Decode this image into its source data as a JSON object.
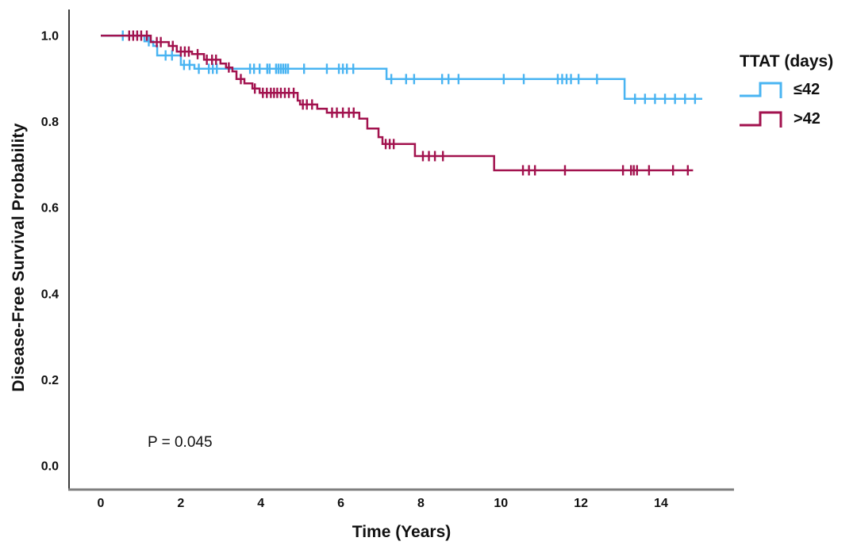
{
  "figure": {
    "background": "#ffffff",
    "text_color": "#111111",
    "x_axis_line_color": "#7f7f7f",
    "y_axis_line_color": "#3c3c3c"
  },
  "legend": {
    "title": "TTAT (days)",
    "items": [
      {
        "label": "≤42",
        "color": "#49B4F2"
      },
      {
        "label": ">42",
        "color": "#A2124E"
      }
    ]
  },
  "chart_data": {
    "type": "line",
    "subtype": "kaplan-meier-step-survival",
    "title": "",
    "xlabel": "Time (Years)",
    "ylabel": "Disease-Free Survival Probability",
    "annotation": "P = 0.045",
    "legend_title": "TTAT (days)",
    "legend_position": "right",
    "grid": false,
    "xlim": [
      -0.8,
      15.8
    ],
    "ylim": [
      0,
      1.05
    ],
    "x_ticks": [
      0,
      2,
      4,
      6,
      8,
      10,
      12,
      14
    ],
    "y_ticks": [
      0.0,
      0.2,
      0.4,
      0.6,
      0.8,
      1.0
    ],
    "y_tick_labels": [
      "0.0",
      "0.2",
      "0.4",
      "0.6",
      "0.8",
      "1.0"
    ],
    "series": [
      {
        "name": "≤42",
        "color": "#49B4F2",
        "steps": [
          [
            0,
            1.0
          ],
          [
            1.09,
            0.987
          ],
          [
            1.31,
            0.976
          ],
          [
            1.41,
            0.954
          ],
          [
            2.0,
            0.932
          ],
          [
            2.34,
            0.923
          ],
          [
            7.14,
            0.899
          ],
          [
            13.09,
            0.853
          ],
          [
            15.03,
            0.853
          ]
        ],
        "censors": [
          [
            0.55,
            1.0
          ],
          [
            1.2,
            0.987
          ],
          [
            1.62,
            0.954
          ],
          [
            1.78,
            0.954
          ],
          [
            2.08,
            0.932
          ],
          [
            2.22,
            0.932
          ],
          [
            2.45,
            0.923
          ],
          [
            2.7,
            0.923
          ],
          [
            2.8,
            0.923
          ],
          [
            2.9,
            0.923
          ],
          [
            3.73,
            0.923
          ],
          [
            3.83,
            0.923
          ],
          [
            3.97,
            0.923
          ],
          [
            4.16,
            0.923
          ],
          [
            4.22,
            0.923
          ],
          [
            4.38,
            0.923
          ],
          [
            4.44,
            0.923
          ],
          [
            4.5,
            0.923
          ],
          [
            4.56,
            0.923
          ],
          [
            4.62,
            0.923
          ],
          [
            4.68,
            0.923
          ],
          [
            5.08,
            0.923
          ],
          [
            5.65,
            0.923
          ],
          [
            5.95,
            0.923
          ],
          [
            6.05,
            0.923
          ],
          [
            6.15,
            0.923
          ],
          [
            6.31,
            0.923
          ],
          [
            7.26,
            0.899
          ],
          [
            7.63,
            0.899
          ],
          [
            7.83,
            0.899
          ],
          [
            8.53,
            0.899
          ],
          [
            8.69,
            0.899
          ],
          [
            8.94,
            0.899
          ],
          [
            10.07,
            0.899
          ],
          [
            10.57,
            0.899
          ],
          [
            11.42,
            0.899
          ],
          [
            11.53,
            0.899
          ],
          [
            11.64,
            0.899
          ],
          [
            11.75,
            0.899
          ],
          [
            11.94,
            0.899
          ],
          [
            12.4,
            0.899
          ],
          [
            13.35,
            0.853
          ],
          [
            13.6,
            0.853
          ],
          [
            13.85,
            0.853
          ],
          [
            14.1,
            0.853
          ],
          [
            14.35,
            0.853
          ],
          [
            14.6,
            0.853
          ],
          [
            14.85,
            0.853
          ]
        ]
      },
      {
        "name": ">42",
        "color": "#A2124E",
        "steps": [
          [
            0,
            1.0
          ],
          [
            1.25,
            0.985
          ],
          [
            1.7,
            0.976
          ],
          [
            1.9,
            0.963
          ],
          [
            2.28,
            0.957
          ],
          [
            2.58,
            0.944
          ],
          [
            2.99,
            0.935
          ],
          [
            3.13,
            0.926
          ],
          [
            3.29,
            0.917
          ],
          [
            3.39,
            0.899
          ],
          [
            3.59,
            0.889
          ],
          [
            3.79,
            0.877
          ],
          [
            3.97,
            0.867
          ],
          [
            4.92,
            0.849
          ],
          [
            4.98,
            0.84
          ],
          [
            5.41,
            0.83
          ],
          [
            5.65,
            0.821
          ],
          [
            6.46,
            0.807
          ],
          [
            6.66,
            0.784
          ],
          [
            6.94,
            0.764
          ],
          [
            7.04,
            0.748
          ],
          [
            7.85,
            0.72
          ],
          [
            9.83,
            0.687
          ],
          [
            14.8,
            0.687
          ]
        ],
        "censors": [
          [
            0.71,
            1.0
          ],
          [
            0.81,
            1.0
          ],
          [
            0.91,
            1.0
          ],
          [
            1.01,
            1.0
          ],
          [
            1.15,
            1.0
          ],
          [
            1.4,
            0.985
          ],
          [
            1.5,
            0.985
          ],
          [
            1.8,
            0.976
          ],
          [
            2.0,
            0.963
          ],
          [
            2.1,
            0.963
          ],
          [
            2.2,
            0.963
          ],
          [
            2.42,
            0.957
          ],
          [
            2.65,
            0.944
          ],
          [
            2.78,
            0.944
          ],
          [
            2.88,
            0.944
          ],
          [
            3.2,
            0.926
          ],
          [
            3.5,
            0.899
          ],
          [
            3.85,
            0.877
          ],
          [
            4.05,
            0.867
          ],
          [
            4.15,
            0.867
          ],
          [
            4.25,
            0.867
          ],
          [
            4.33,
            0.867
          ],
          [
            4.41,
            0.867
          ],
          [
            4.5,
            0.867
          ],
          [
            4.6,
            0.867
          ],
          [
            4.7,
            0.867
          ],
          [
            4.82,
            0.867
          ],
          [
            5.05,
            0.84
          ],
          [
            5.15,
            0.84
          ],
          [
            5.28,
            0.84
          ],
          [
            5.78,
            0.821
          ],
          [
            5.9,
            0.821
          ],
          [
            6.05,
            0.821
          ],
          [
            6.2,
            0.821
          ],
          [
            6.32,
            0.821
          ],
          [
            7.12,
            0.748
          ],
          [
            7.22,
            0.748
          ],
          [
            7.32,
            0.748
          ],
          [
            8.05,
            0.72
          ],
          [
            8.2,
            0.72
          ],
          [
            8.35,
            0.72
          ],
          [
            8.55,
            0.72
          ],
          [
            10.55,
            0.687
          ],
          [
            10.7,
            0.687
          ],
          [
            10.85,
            0.687
          ],
          [
            11.6,
            0.687
          ],
          [
            13.05,
            0.687
          ],
          [
            13.25,
            0.687
          ],
          [
            13.32,
            0.687
          ],
          [
            13.4,
            0.687
          ],
          [
            13.7,
            0.687
          ],
          [
            14.3,
            0.687
          ],
          [
            14.67,
            0.687
          ]
        ]
      }
    ]
  }
}
